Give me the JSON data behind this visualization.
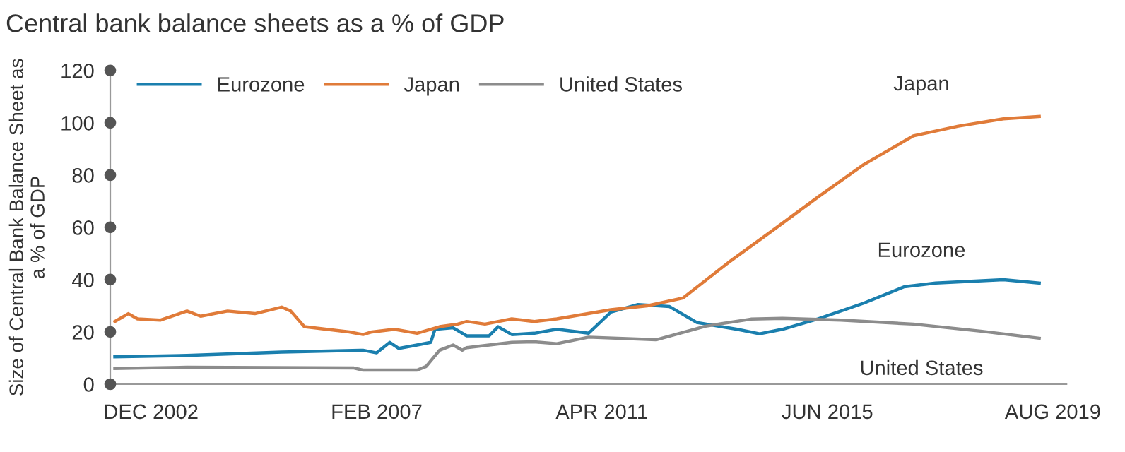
{
  "chart_data": {
    "type": "line",
    "title": "Central bank balance sheets as a % of GDP",
    "ylabel": "Size of Central Bank Balance Sheet as\na % of GDP",
    "ylim": [
      0,
      120
    ],
    "yticks": [
      0,
      20,
      40,
      60,
      80,
      100,
      120
    ],
    "xlim": [
      "2002-03",
      "2019-11"
    ],
    "xticks": [
      {
        "value": "2002-12",
        "label": "DEC 2002"
      },
      {
        "value": "2007-02",
        "label": "FEB 2007"
      },
      {
        "value": "2011-04",
        "label": "APR 2011"
      },
      {
        "value": "2015-06",
        "label": "JUN 2015"
      },
      {
        "value": "2019-08",
        "label": "AUG 2019"
      }
    ],
    "grid": false,
    "legend": "top left",
    "marker": "none",
    "line_style": "solid",
    "series": [
      {
        "name": "Eurozone",
        "color": "#1a7fae",
        "x": [
          "2002-04",
          "2003-08",
          "2005-05",
          "2006-11",
          "2007-02",
          "2007-05",
          "2007-07",
          "2007-11",
          "2008-02",
          "2008-03",
          "2008-07",
          "2008-10",
          "2009-03",
          "2009-05",
          "2009-08",
          "2010-01",
          "2010-06",
          "2011-01",
          "2011-06",
          "2011-12",
          "2012-07",
          "2013-01",
          "2013-10",
          "2014-03",
          "2014-08",
          "2015-04",
          "2016-02",
          "2016-11",
          "2017-06",
          "2018-09",
          "2019-05"
        ],
        "values": [
          10.5,
          11,
          12.3,
          13,
          12,
          16,
          13.7,
          15,
          16,
          21,
          21.6,
          18.5,
          18.5,
          22,
          19,
          19.5,
          21,
          19.5,
          27.6,
          30.5,
          29.7,
          23.6,
          21,
          19.3,
          21,
          25,
          31,
          37.3,
          38.7,
          40,
          38.7
        ]
      },
      {
        "name": "Japan",
        "color": "#e07b39",
        "x": [
          "2002-04",
          "2002-07",
          "2002-09",
          "2003-02",
          "2003-08",
          "2003-11",
          "2004-05",
          "2004-11",
          "2005-05",
          "2005-07",
          "2005-10",
          "2006-03",
          "2006-08",
          "2006-11",
          "2007-01",
          "2007-06",
          "2007-11",
          "2008-04",
          "2008-08",
          "2008-10",
          "2009-02",
          "2009-08",
          "2010-01",
          "2010-06",
          "2011-06",
          "2012-02",
          "2012-10",
          "2013-08",
          "2014-06",
          "2015-04",
          "2016-02",
          "2017-01",
          "2017-11",
          "2018-09",
          "2019-05"
        ],
        "values": [
          24,
          27,
          25,
          24.5,
          28,
          26,
          28,
          27,
          29.5,
          28,
          22,
          21,
          20,
          19,
          20,
          21,
          19.5,
          22,
          23,
          24,
          23,
          25,
          24,
          25,
          28.5,
          30,
          33,
          46.5,
          59,
          71.7,
          84,
          95,
          98.7,
          101.5,
          102.4
        ]
      },
      {
        "name": "United States",
        "color": "#8c8c8c",
        "x": [
          "2002-04",
          "2003-08",
          "2006-09",
          "2006-11",
          "2007-11",
          "2008-01",
          "2008-04",
          "2008-07",
          "2008-09",
          "2008-10",
          "2009-08",
          "2010-01",
          "2010-06",
          "2011-01",
          "2012-04",
          "2013-03",
          "2014-01",
          "2014-08",
          "2015-09",
          "2017-01",
          "2018-04",
          "2019-05"
        ],
        "values": [
          6,
          6.5,
          6.2,
          5.4,
          5.4,
          6.8,
          13,
          15,
          13,
          14,
          16,
          16.2,
          15.5,
          18,
          17,
          22.2,
          24.9,
          25.2,
          24.5,
          23,
          20.3,
          17.6
        ]
      }
    ]
  }
}
